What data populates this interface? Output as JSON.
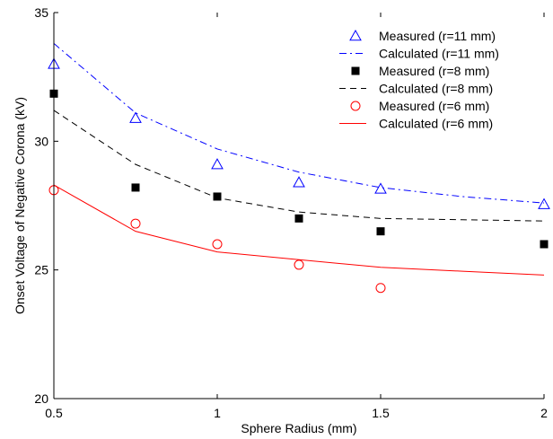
{
  "chart_data": {
    "type": "scatter",
    "title": "",
    "xlabel": "Sphere Radius (mm)",
    "ylabel": "Onset Voltage of Negative Corona (kV)",
    "xlim": [
      0.5,
      2
    ],
    "ylim": [
      20,
      35
    ],
    "xticks": [
      0.5,
      1,
      1.5,
      2
    ],
    "xtick_labels": [
      "0.5",
      "1",
      "1.5",
      "2"
    ],
    "yticks": [
      20,
      25,
      30,
      35
    ],
    "ytick_labels": [
      "20",
      "25",
      "30",
      "35"
    ],
    "grid": false,
    "legend_position": "top-right",
    "series": [
      {
        "name": "Measured (r=11 mm)",
        "kind": "marker",
        "marker": "triangle",
        "color": "#0000ff",
        "x": [
          0.5,
          0.75,
          1.0,
          1.25,
          1.5,
          2.0
        ],
        "y": [
          33.0,
          30.9,
          29.1,
          28.4,
          28.15,
          27.55
        ]
      },
      {
        "name": "Calculated (r=11 mm)",
        "kind": "line",
        "dash": "dashdot",
        "color": "#0000ff",
        "x": [
          0.5,
          0.75,
          1.0,
          1.25,
          1.5,
          1.75,
          2.0
        ],
        "y": [
          33.8,
          31.1,
          29.7,
          28.8,
          28.2,
          27.85,
          27.6
        ]
      },
      {
        "name": "Measured (r=8 mm)",
        "kind": "marker",
        "marker": "filled-square",
        "color": "#000000",
        "x": [
          0.5,
          0.75,
          1.0,
          1.25,
          1.5,
          2.0
        ],
        "y": [
          31.85,
          28.2,
          27.85,
          27.0,
          26.5,
          26.0
        ]
      },
      {
        "name": "Calculated (r=8 mm)",
        "kind": "line",
        "dash": "dashed",
        "color": "#000000",
        "x": [
          0.5,
          0.75,
          1.0,
          1.25,
          1.5,
          1.75,
          2.0
        ],
        "y": [
          31.2,
          29.1,
          27.8,
          27.25,
          27.0,
          26.95,
          26.9
        ]
      },
      {
        "name": "Measured (r=6 mm)",
        "kind": "marker",
        "marker": "circle",
        "color": "#ff0000",
        "x": [
          0.5,
          0.75,
          1.0,
          1.25,
          1.5
        ],
        "y": [
          28.1,
          26.8,
          26.0,
          25.2,
          24.3
        ]
      },
      {
        "name": "Calculated (r=6 mm)",
        "kind": "line",
        "dash": "solid",
        "color": "#ff0000",
        "x": [
          0.5,
          0.75,
          1.0,
          1.25,
          1.5,
          1.75,
          2.0
        ],
        "y": [
          28.3,
          26.5,
          25.7,
          25.4,
          25.1,
          24.95,
          24.8
        ]
      }
    ]
  }
}
